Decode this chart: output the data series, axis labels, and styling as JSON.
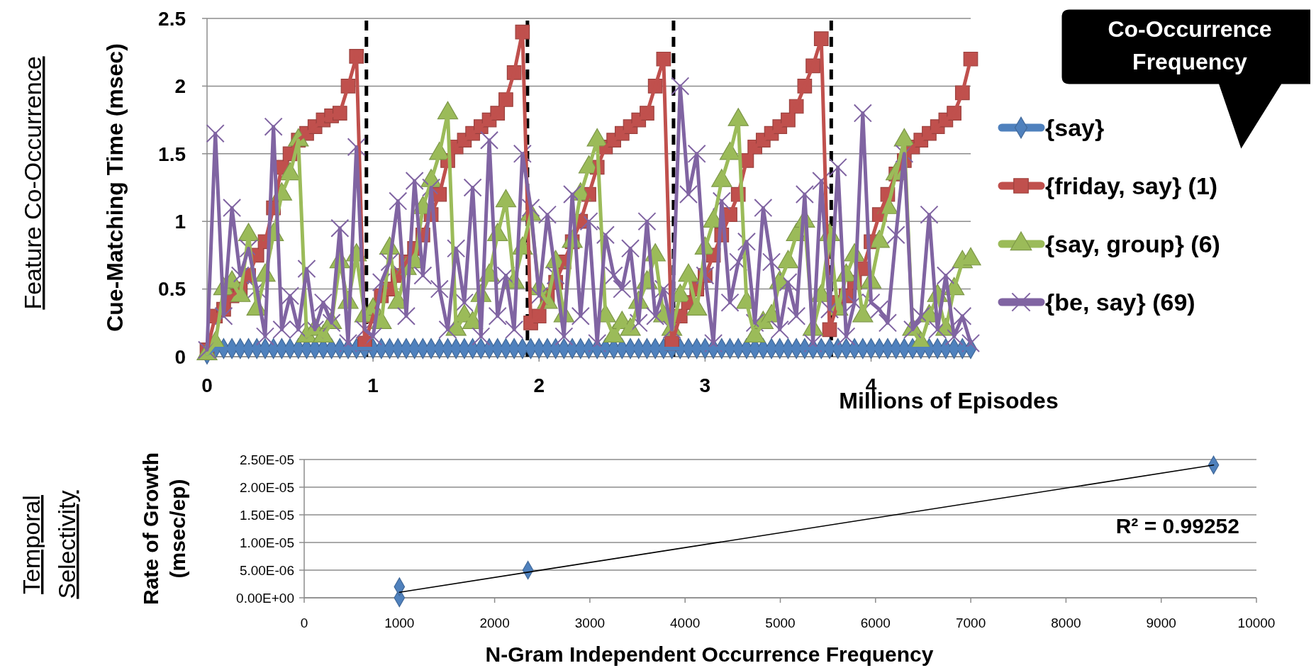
{
  "chart_data": [
    {
      "type": "line",
      "xlabel": "Millions of Episodes",
      "ylabel": "Cue-Matching Time (msec)",
      "x": [
        0,
        0.05,
        0.1,
        0.15,
        0.2,
        0.25,
        0.3,
        0.35,
        0.4,
        0.45,
        0.5,
        0.55,
        0.6,
        0.65,
        0.7,
        0.75,
        0.8,
        0.85,
        0.9,
        0.95,
        1,
        1.05,
        1.1,
        1.15,
        1.2,
        1.25,
        1.3,
        1.35,
        1.4,
        1.45,
        1.5,
        1.55,
        1.6,
        1.65,
        1.7,
        1.75,
        1.8,
        1.85,
        1.9,
        1.95,
        2,
        2.05,
        2.1,
        2.15,
        2.2,
        2.25,
        2.3,
        2.35,
        2.4,
        2.45,
        2.5,
        2.55,
        2.6,
        2.65,
        2.7,
        2.75,
        2.8,
        2.85,
        2.9,
        2.95,
        3,
        3.05,
        3.1,
        3.15,
        3.2,
        3.25,
        3.3,
        3.35,
        3.4,
        3.45,
        3.5,
        3.55,
        3.6,
        3.65,
        3.7,
        3.75,
        3.8,
        3.85,
        3.9,
        3.95,
        4,
        4.05,
        4.1,
        4.15,
        4.2,
        4.25,
        4.3,
        4.35,
        4.4,
        4.45,
        4.5,
        4.55,
        4.6
      ],
      "series": [
        {
          "name": "{say}",
          "color": "#4f81bd",
          "marker": "diamond",
          "values": [
            0.02,
            0.06,
            0.06,
            0.06,
            0.06,
            0.06,
            0.06,
            0.06,
            0.06,
            0.06,
            0.06,
            0.06,
            0.06,
            0.06,
            0.06,
            0.06,
            0.06,
            0.06,
            0.06,
            0.06,
            0.06,
            0.06,
            0.06,
            0.06,
            0.06,
            0.06,
            0.06,
            0.06,
            0.06,
            0.06,
            0.06,
            0.06,
            0.06,
            0.06,
            0.06,
            0.06,
            0.06,
            0.06,
            0.06,
            0.06,
            0.06,
            0.06,
            0.06,
            0.06,
            0.06,
            0.06,
            0.06,
            0.06,
            0.06,
            0.06,
            0.06,
            0.06,
            0.06,
            0.06,
            0.06,
            0.06,
            0.06,
            0.06,
            0.06,
            0.06,
            0.06,
            0.06,
            0.06,
            0.06,
            0.06,
            0.06,
            0.06,
            0.06,
            0.06,
            0.06,
            0.06,
            0.06,
            0.06,
            0.06,
            0.06,
            0.06,
            0.06,
            0.06,
            0.06,
            0.06,
            0.06,
            0.06,
            0.06,
            0.06,
            0.06,
            0.06,
            0.06,
            0.06,
            0.06,
            0.06,
            0.06,
            0.06,
            0.06
          ]
        },
        {
          "name": "{friday, say} (1)",
          "color": "#c0504d",
          "marker": "square",
          "values": [
            0.05,
            0.3,
            0.35,
            0.45,
            0.5,
            0.6,
            0.75,
            0.85,
            1.1,
            1.4,
            1.5,
            1.6,
            1.65,
            1.7,
            1.75,
            1.78,
            1.8,
            2.0,
            2.22,
            0.1,
            0.3,
            0.45,
            0.5,
            0.6,
            0.7,
            0.8,
            0.9,
            1.05,
            1.2,
            1.45,
            1.55,
            1.6,
            1.65,
            1.7,
            1.75,
            1.8,
            1.9,
            2.1,
            2.4,
            0.25,
            0.3,
            0.45,
            0.55,
            0.7,
            0.85,
            1.0,
            1.2,
            1.4,
            1.55,
            1.6,
            1.65,
            1.7,
            1.75,
            1.8,
            2.0,
            2.2,
            0.1,
            0.3,
            0.4,
            0.5,
            0.6,
            0.75,
            0.9,
            1.05,
            1.2,
            1.45,
            1.55,
            1.6,
            1.65,
            1.7,
            1.75,
            1.85,
            2.0,
            2.15,
            2.35,
            0.2,
            0.4,
            0.45,
            0.55,
            0.65,
            0.85,
            1.05,
            1.2,
            1.35,
            1.45,
            1.55,
            1.6,
            1.65,
            1.7,
            1.75,
            1.8,
            1.95,
            2.2
          ]
        },
        {
          "name": "{say, group} (6)",
          "color": "#9bbb59",
          "marker": "triangle",
          "values": [
            0.02,
            0.1,
            0.5,
            0.55,
            0.45,
            0.9,
            0.35,
            0.6,
            0.9,
            1.2,
            1.35,
            1.6,
            0.15,
            0.2,
            0.15,
            0.25,
            0.7,
            0.4,
            0.75,
            0.3,
            0.35,
            0.25,
            0.8,
            0.4,
            0.65,
            0.7,
            1.1,
            1.3,
            1.5,
            1.8,
            0.2,
            0.3,
            0.25,
            0.45,
            0.6,
            0.9,
            1.15,
            0.55,
            0.8,
            1.05,
            0.5,
            0.4,
            0.7,
            0.3,
            0.85,
            1.2,
            1.4,
            1.6,
            0.3,
            0.15,
            0.25,
            0.2,
            0.4,
            0.55,
            0.75,
            0.3,
            0.2,
            0.45,
            0.6,
            0.35,
            0.8,
            1.0,
            1.3,
            1.5,
            1.75,
            0.4,
            0.15,
            0.25,
            0.3,
            0.55,
            0.7,
            0.9,
            1.0,
            0.2,
            0.45,
            0.9,
            0.35,
            0.6,
            0.75,
            0.3,
            0.55,
            0.85,
            1.1,
            1.35,
            1.6,
            0.2,
            0.1,
            0.3,
            0.45,
            0.2,
            0.5,
            0.7,
            0.72
          ]
        },
        {
          "name": "{be, say} (69)",
          "color": "#8064a2",
          "marker": "cross",
          "values": [
            0.05,
            1.65,
            0.3,
            1.1,
            0.6,
            0.8,
            0.5,
            0.15,
            1.7,
            0.2,
            0.45,
            0.2,
            0.65,
            0.2,
            0.4,
            0.25,
            0.95,
            0.1,
            1.55,
            0.2,
            0.15,
            0.55,
            0.7,
            1.15,
            0.3,
            1.3,
            0.6,
            1.25,
            0.5,
            0.2,
            0.8,
            0.4,
            1.25,
            0.15,
            1.6,
            0.3,
            0.6,
            0.2,
            1.5,
            1.1,
            0.45,
            1.05,
            0.6,
            0.15,
            1.2,
            0.3,
            1.0,
            0.1,
            0.9,
            0.6,
            0.5,
            0.8,
            0.25,
            1.0,
            0.3,
            0.5,
            0.2,
            2.0,
            1.2,
            1.5,
            0.6,
            0.1,
            1.15,
            0.4,
            0.7,
            0.85,
            0.25,
            1.1,
            0.7,
            0.2,
            0.55,
            0.3,
            1.2,
            0.1,
            1.3,
            0.35,
            1.4,
            0.15,
            0.4,
            1.8,
            0.4,
            0.35,
            0.25,
            0.9,
            1.5,
            0.2,
            0.3,
            1.05,
            0.2,
            0.6,
            0.15,
            0.3,
            0.1
          ]
        }
      ],
      "xlim": [
        0,
        4.6
      ],
      "xticks": [
        0,
        1,
        2,
        3,
        4
      ],
      "ylim": [
        0,
        2.5
      ],
      "yticks": [
        0,
        0.5,
        1,
        1.5,
        2,
        2.5
      ],
      "grid": "y",
      "legend": "right",
      "ref_lines": [
        {
          "axis": "x",
          "value": 0.96,
          "color": "#000000",
          "line_style": "dashed"
        },
        {
          "axis": "x",
          "value": 1.93,
          "color": "#000000",
          "line_style": "dashed"
        },
        {
          "axis": "x",
          "value": 2.81,
          "color": "#000000",
          "line_style": "dashed"
        },
        {
          "axis": "x",
          "value": 3.76,
          "color": "#000000",
          "line_style": "dashed"
        }
      ],
      "annotations": [
        "Feature Co-Occurrence",
        "Co-Occurrence Frequency"
      ]
    },
    {
      "type": "scatter",
      "xlabel": "N-Gram Independent Occurrence Frequency",
      "ylabel": "Rate of Growth (msec/ep)",
      "series": [
        {
          "color": "#4f81bd",
          "marker": "diamond",
          "x": [
            1000,
            1000,
            2350,
            9550
          ],
          "values": [
            0,
            2e-06,
            5e-06,
            2.4e-05
          ]
        },
        {
          "type": "line",
          "color": "#000000",
          "marker": "none",
          "x": [
            1000,
            9550
          ],
          "values": [
            1e-06,
            2.4e-05
          ]
        }
      ],
      "xlim": [
        0,
        10000
      ],
      "xticks": [
        0,
        1000,
        2000,
        3000,
        4000,
        5000,
        6000,
        7000,
        8000,
        9000,
        10000
      ],
      "ylim": [
        0,
        2.5e-05
      ],
      "yticks": [
        {
          "value": 0,
          "label": "0.00E+00"
        },
        {
          "value": 5e-06,
          "label": "5.00E-06"
        },
        {
          "value": 1e-05,
          "label": "1.00E-05"
        },
        {
          "value": 1.5e-05,
          "label": "1.50E-05"
        },
        {
          "value": 2e-05,
          "label": "2.00E-05"
        },
        {
          "value": 2.5e-05,
          "label": "2.50E-05"
        }
      ],
      "grid": "y",
      "annotations": [
        "Temporal Selectivity",
        "R² = 0.99252"
      ]
    }
  ]
}
